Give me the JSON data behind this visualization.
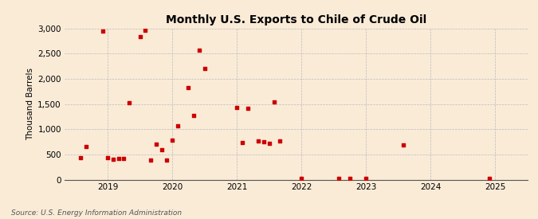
{
  "title": "Monthly U.S. Exports to Chile of Crude Oil",
  "ylabel": "Thousand Barrels",
  "source": "Source: U.S. Energy Information Administration",
  "background_color": "#faebd7",
  "point_color": "#cc0000",
  "ylim": [
    0,
    3000
  ],
  "yticks": [
    0,
    500,
    1000,
    1500,
    2000,
    2500,
    3000
  ],
  "xlim": [
    2018.33,
    2025.5
  ],
  "xtick_positions": [
    2019,
    2020,
    2021,
    2022,
    2023,
    2024,
    2025
  ],
  "data_points": [
    [
      2018.583,
      430
    ],
    [
      2018.667,
      650
    ],
    [
      2018.917,
      2950
    ],
    [
      2019.0,
      430
    ],
    [
      2019.083,
      400
    ],
    [
      2019.167,
      420
    ],
    [
      2019.25,
      420
    ],
    [
      2019.333,
      1530
    ],
    [
      2019.5,
      2840
    ],
    [
      2019.583,
      2960
    ],
    [
      2019.667,
      380
    ],
    [
      2019.75,
      700
    ],
    [
      2019.833,
      590
    ],
    [
      2019.917,
      380
    ],
    [
      2020.0,
      780
    ],
    [
      2020.083,
      1070
    ],
    [
      2020.25,
      1830
    ],
    [
      2020.333,
      1280
    ],
    [
      2020.417,
      2570
    ],
    [
      2020.5,
      2200
    ],
    [
      2021.0,
      1430
    ],
    [
      2021.083,
      740
    ],
    [
      2021.167,
      1410
    ],
    [
      2021.333,
      760
    ],
    [
      2021.417,
      750
    ],
    [
      2021.5,
      720
    ],
    [
      2021.583,
      1540
    ],
    [
      2021.667,
      770
    ],
    [
      2022.0,
      30
    ],
    [
      2022.583,
      30
    ],
    [
      2022.75,
      30
    ],
    [
      2023.0,
      30
    ],
    [
      2023.583,
      680
    ],
    [
      2024.917,
      30
    ]
  ]
}
